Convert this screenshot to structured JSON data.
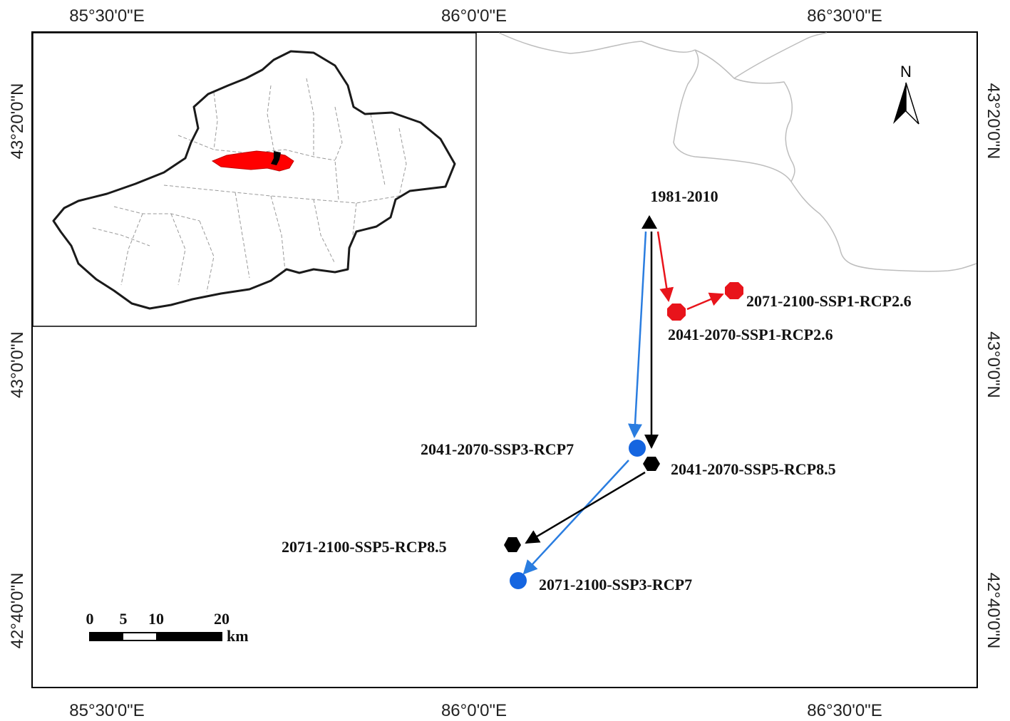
{
  "axis_labels": {
    "top": [
      "85°30'0\"E",
      "86°0'0\"E",
      "86°30'0\"E"
    ],
    "bottom": [
      "85°30'0\"E",
      "86°0'0\"E",
      "86°30'0\"E"
    ],
    "left": [
      "43°20'0\"N",
      "43°0'0\"N",
      "42°40'0\"N"
    ],
    "right": [
      "43°20'0\"N",
      "43°0'0\"N",
      "42°40'0\"N"
    ]
  },
  "north_arrow": {
    "label": "N",
    "icon": "north-arrow-icon"
  },
  "scale_bar": {
    "ticks": [
      "0",
      "5",
      "10",
      "20"
    ],
    "unit": "km"
  },
  "points": [
    {
      "id": "p1981",
      "label": "1981-2010",
      "shape": "triangle",
      "color": "#000000"
    },
    {
      "id": "p2041s1",
      "label": "2041-2070-SSP1-RCP2.6",
      "shape": "octagon",
      "color": "#e8141b"
    },
    {
      "id": "p2071s1",
      "label": "2071-2100-SSP1-RCP2.6",
      "shape": "octagon",
      "color": "#e8141b"
    },
    {
      "id": "p2041s3",
      "label": "2041-2070-SSP3-RCP7",
      "shape": "circle",
      "color": "#1565e0"
    },
    {
      "id": "p2071s3",
      "label": "2071-2100-SSP3-RCP7",
      "shape": "circle",
      "color": "#1565e0"
    },
    {
      "id": "p2041s5",
      "label": "2041-2070-SSP5-RCP8.5",
      "shape": "hexagon",
      "color": "#000000"
    },
    {
      "id": "p2071s5",
      "label": "2071-2100-SSP5-RCP8.5",
      "shape": "hexagon",
      "color": "#000000"
    }
  ],
  "colors": {
    "ssp1": "#e8141b",
    "ssp3": "#2a7de0",
    "ssp5": "#000000",
    "inset_region": "#ff0000"
  }
}
